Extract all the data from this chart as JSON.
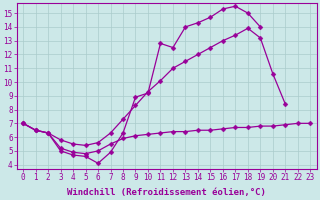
{
  "background_color": "#cce8e8",
  "grid_color": "#aacccc",
  "line_color": "#990099",
  "marker": "D",
  "markersize": 2.5,
  "linewidth": 0.9,
  "xlabel": "Windchill (Refroidissement éolien,°C)",
  "xlabel_fontsize": 6.5,
  "tick_fontsize": 5.5,
  "xlim": [
    -0.5,
    23.5
  ],
  "ylim": [
    3.7,
    15.7
  ],
  "yticks": [
    4,
    5,
    6,
    7,
    8,
    9,
    10,
    11,
    12,
    13,
    14,
    15
  ],
  "xticks": [
    0,
    1,
    2,
    3,
    4,
    5,
    6,
    7,
    8,
    9,
    10,
    11,
    12,
    13,
    14,
    15,
    16,
    17,
    18,
    19,
    20,
    21,
    22,
    23
  ],
  "curve1_x": [
    0,
    1,
    2,
    3,
    4,
    5,
    6,
    7,
    8,
    9,
    10,
    11,
    12,
    13,
    14,
    15,
    16,
    17,
    18,
    19,
    20,
    21,
    22,
    23
  ],
  "curve1_y": [
    7.0,
    6.5,
    6.3,
    5.0,
    4.7,
    4.6,
    4.1,
    4.9,
    6.3,
    8.9,
    9.2,
    12.8,
    12.5,
    14.0,
    14.3,
    14.7,
    15.3,
    15.5,
    15.0,
    14.0,
    null,
    null,
    null,
    null
  ],
  "curve2_x": [
    0,
    1,
    2,
    3,
    4,
    5,
    6,
    7,
    8,
    9,
    10,
    11,
    12,
    13,
    14,
    15,
    16,
    17,
    18,
    19,
    20,
    21,
    22,
    23
  ],
  "curve2_y": [
    7.0,
    6.5,
    6.3,
    5.8,
    5.5,
    5.4,
    5.6,
    6.3,
    7.3,
    8.3,
    9.3,
    10.1,
    11.0,
    11.5,
    12.0,
    12.5,
    13.0,
    13.4,
    13.9,
    13.2,
    10.6,
    8.4,
    null,
    null
  ],
  "curve3_x": [
    0,
    1,
    2,
    3,
    4,
    5,
    6,
    7,
    8,
    9,
    10,
    11,
    12,
    13,
    14,
    15,
    16,
    17,
    18,
    19,
    20,
    21,
    22,
    23
  ],
  "curve3_y": [
    7.0,
    6.5,
    6.3,
    5.2,
    4.9,
    4.8,
    5.0,
    5.5,
    5.9,
    6.1,
    6.2,
    6.3,
    6.4,
    6.4,
    6.5,
    6.5,
    6.6,
    6.7,
    6.7,
    6.8,
    6.8,
    6.9,
    7.0,
    7.0
  ]
}
